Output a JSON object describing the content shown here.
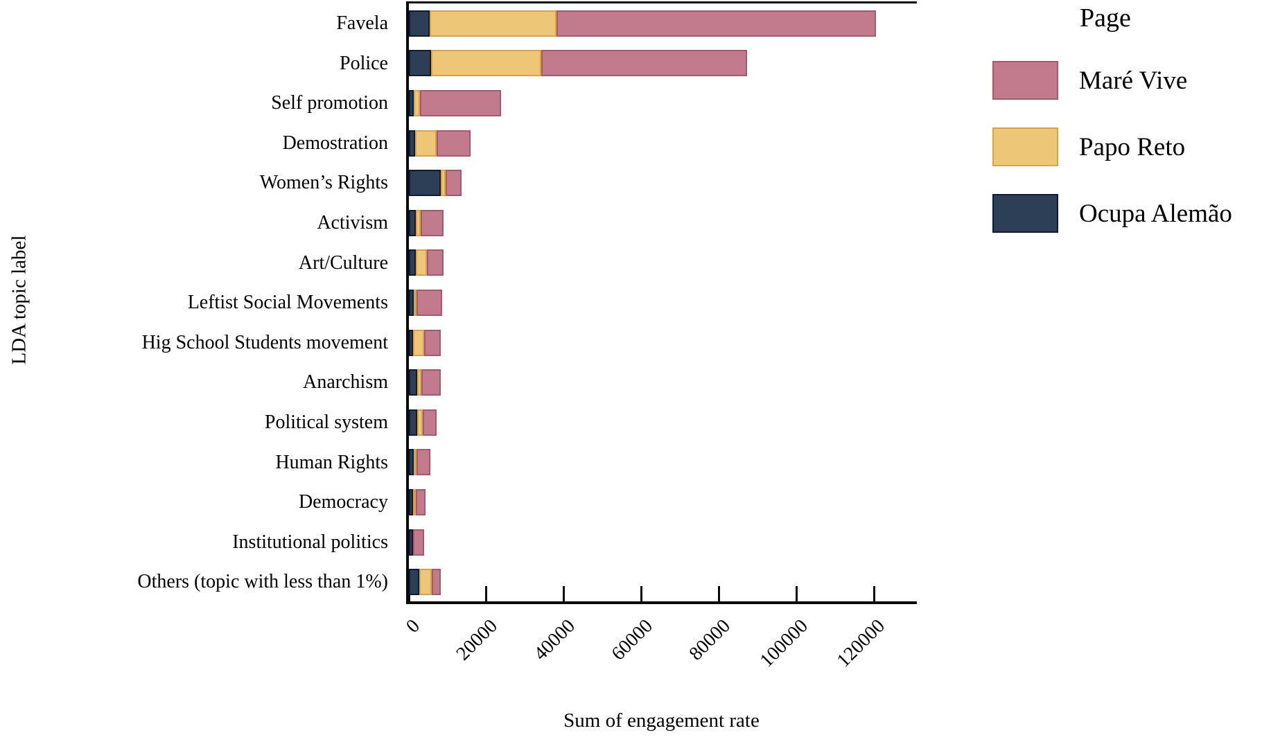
{
  "chart_data": {
    "type": "bar",
    "orientation": "horizontal",
    "stacked": true,
    "title": "",
    "xlabel": "Sum of engagement rate",
    "ylabel": "LDA topic label",
    "xlim": [
      0,
      131000
    ],
    "xticks": [
      0,
      20000,
      40000,
      60000,
      80000,
      100000,
      120000
    ],
    "xtick_labels": [
      "0",
      "20000",
      "40000",
      "60000",
      "80000",
      "100000",
      "120000"
    ],
    "xtick_rotation_deg": -45,
    "grid": false,
    "categories": [
      "Favela",
      "Police",
      "Self promotion",
      "Demostration",
      "Women’s Rights",
      "Activism",
      "Art/Culture",
      "Leftist Social Movements",
      "Hig School Students movement",
      "Anarchism",
      "Political system",
      "Human Rights",
      "Democracy",
      "Institutional politics",
      "Others (topic with less than 1%)"
    ],
    "series": [
      {
        "name": "Ocupa Alemão",
        "color": "#2d3e57",
        "border_color": "#0c1c33",
        "values": [
          5300,
          5700,
          1300,
          1600,
          8200,
          1800,
          1800,
          1300,
          1100,
          2100,
          2100,
          1300,
          1100,
          1100,
          2700
        ]
      },
      {
        "name": "Papo Reto",
        "color": "#edc677",
        "border_color": "#d8a24c",
        "values": [
          32700,
          28500,
          1500,
          5600,
          1300,
          1200,
          2800,
          400,
          2900,
          1200,
          1500,
          250,
          500,
          0,
          3200
        ]
      },
      {
        "name": "Maré Vive",
        "color": "#c17b8c",
        "border_color": "#a35a6e",
        "values": [
          82500,
          53100,
          20900,
          8700,
          4100,
          5900,
          4300,
          6600,
          4200,
          4900,
          3500,
          3550,
          2400,
          2900,
          2300
        ]
      }
    ],
    "legend": {
      "title": "Page",
      "position": "top-right",
      "order": [
        "Maré Vive",
        "Papo Reto",
        "Ocupa Alemão"
      ]
    }
  },
  "axes": {
    "x_title": "Sum of engagement rate",
    "y_title": "LDA topic label"
  },
  "colors": {
    "background": "#ffffff",
    "axis_line": "#0a0a0a",
    "text": "#000000"
  }
}
